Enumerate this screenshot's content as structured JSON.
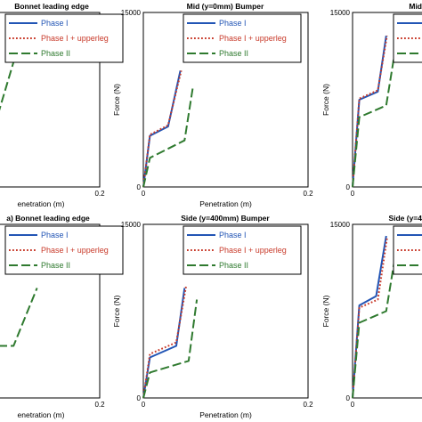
{
  "colors": {
    "phase1": "#2255b5",
    "phase1_upperleg": "#c83a2a",
    "phase2": "#2f7a2f",
    "axis": "#000000"
  },
  "chart_data": [
    {
      "type": "line",
      "title": "Bonnet leading edge",
      "xlabel": "enetration (m)",
      "ylabel": "",
      "xlim": [
        0,
        0.2
      ],
      "ylim": [
        0,
        15000
      ],
      "x_ticks": [
        "0.2"
      ],
      "y_ticks": [],
      "legend": "top-right",
      "series": [
        {
          "name": "Phase I",
          "color_key": "phase1",
          "style": "solid",
          "points": []
        },
        {
          "name": "Phase I + upperleg",
          "color_key": "phase1_upperleg",
          "style": "dotted",
          "points": [
            [
              0.0,
              7500
            ],
            [
              0.085,
              7500
            ],
            [
              0.095,
              13500
            ]
          ]
        },
        {
          "name": "Phase II",
          "color_key": "phase2",
          "style": "dashed",
          "points": [
            [
              0.0,
              6000
            ],
            [
              0.135,
              6200
            ],
            [
              0.15,
              13000
            ]
          ]
        }
      ]
    },
    {
      "type": "line",
      "title": "Mid (y=0mm) Bumper",
      "xlabel": "Penetration (m)",
      "ylabel": "Force (N)",
      "xlim": [
        0,
        0.2
      ],
      "ylim": [
        0,
        15000
      ],
      "x_ticks": [
        "0",
        "0.2"
      ],
      "y_ticks": [
        "0",
        "15000"
      ],
      "legend": "top-right",
      "series": [
        {
          "name": "Phase I",
          "color_key": "phase1",
          "style": "solid",
          "points": [
            [
              0.0,
              0
            ],
            [
              0.008,
              4400
            ],
            [
              0.03,
              5200
            ],
            [
              0.045,
              10000
            ]
          ]
        },
        {
          "name": "Phase I + upperleg",
          "color_key": "phase1_upperleg",
          "style": "dotted",
          "points": [
            [
              0.0,
              0
            ],
            [
              0.008,
              4500
            ],
            [
              0.03,
              5300
            ],
            [
              0.046,
              10000
            ]
          ]
        },
        {
          "name": "Phase II",
          "color_key": "phase2",
          "style": "dashed",
          "points": [
            [
              0.0,
              0
            ],
            [
              0.008,
              2500
            ],
            [
              0.05,
              4000
            ],
            [
              0.06,
              8500
            ]
          ]
        }
      ]
    },
    {
      "type": "line",
      "title": "Mid",
      "xlabel": "",
      "ylabel": "Force (N)",
      "xlim": [
        0,
        0.2
      ],
      "ylim": [
        0,
        15000
      ],
      "x_ticks": [
        "0"
      ],
      "y_ticks": [
        "0",
        "15000"
      ],
      "legend": "top-right",
      "series": [
        {
          "name": "Phase I",
          "color_key": "phase1",
          "style": "solid",
          "points": [
            [
              0.0,
              0
            ],
            [
              0.008,
              7500
            ],
            [
              0.03,
              8200
            ],
            [
              0.04,
              13000
            ]
          ]
        },
        {
          "name": "Phase I + upperleg",
          "color_key": "phase1_upperleg",
          "style": "dotted",
          "points": [
            [
              0.0,
              0
            ],
            [
              0.008,
              7600
            ],
            [
              0.03,
              8300
            ],
            [
              0.041,
              13000
            ]
          ]
        },
        {
          "name": "Phase II",
          "color_key": "phase2",
          "style": "dashed",
          "points": [
            [
              0.0,
              0
            ],
            [
              0.008,
              6000
            ],
            [
              0.04,
              7000
            ],
            [
              0.05,
              11500
            ]
          ]
        }
      ]
    },
    {
      "type": "line",
      "title": "a) Bonnet leading edge",
      "xlabel": "enetration (m)",
      "ylabel": "",
      "xlim": [
        0,
        0.2
      ],
      "ylim": [
        0,
        15000
      ],
      "x_ticks": [
        "0.2"
      ],
      "y_ticks": [],
      "legend": "top-right",
      "series": [
        {
          "name": "Phase I",
          "color_key": "phase1",
          "style": "solid",
          "points": []
        },
        {
          "name": "Phase I + upperleg",
          "color_key": "phase1_upperleg",
          "style": "dotted",
          "points": [
            [
              0.0,
              5000
            ],
            [
              0.1,
              5200
            ],
            [
              0.11,
              10500
            ]
          ]
        },
        {
          "name": "Phase II",
          "color_key": "phase2",
          "style": "dashed",
          "points": [
            [
              0.0,
              4500
            ],
            [
              0.145,
              4500
            ],
            [
              0.16,
              9500
            ]
          ]
        }
      ]
    },
    {
      "type": "line",
      "title": "Side (y=400mm) Bumper",
      "xlabel": "Penetration (m)",
      "ylabel": "Force (N)",
      "xlim": [
        0,
        0.2
      ],
      "ylim": [
        0,
        15000
      ],
      "x_ticks": [
        "0",
        "0.2"
      ],
      "y_ticks": [
        "0",
        "15000"
      ],
      "legend": "top-right",
      "series": [
        {
          "name": "Phase I",
          "color_key": "phase1",
          "style": "solid",
          "points": [
            [
              0.0,
              0
            ],
            [
              0.008,
              3500
            ],
            [
              0.04,
              4500
            ],
            [
              0.05,
              9500
            ]
          ]
        },
        {
          "name": "Phase I + upperleg",
          "color_key": "phase1_upperleg",
          "style": "dotted",
          "points": [
            [
              0.0,
              0
            ],
            [
              0.008,
              3800
            ],
            [
              0.04,
              4800
            ],
            [
              0.052,
              9700
            ]
          ]
        },
        {
          "name": "Phase II",
          "color_key": "phase2",
          "style": "dashed",
          "points": [
            [
              0.0,
              0
            ],
            [
              0.008,
              2200
            ],
            [
              0.055,
              3200
            ],
            [
              0.065,
              8500
            ]
          ]
        }
      ]
    },
    {
      "type": "line",
      "title": "Side (y=4",
      "xlabel": "",
      "ylabel": "Force (N)",
      "xlim": [
        0,
        0.2
      ],
      "ylim": [
        0,
        15000
      ],
      "x_ticks": [
        "0"
      ],
      "y_ticks": [
        "0",
        "15000"
      ],
      "legend": "top-right",
      "series": [
        {
          "name": "Phase I",
          "color_key": "phase1",
          "style": "solid",
          "points": [
            [
              0.0,
              0
            ],
            [
              0.008,
              8000
            ],
            [
              0.028,
              8800
            ],
            [
              0.04,
              14000
            ]
          ]
        },
        {
          "name": "Phase I + upperleg",
          "color_key": "phase1_upperleg",
          "style": "dotted",
          "points": [
            [
              0.0,
              0
            ],
            [
              0.008,
              7800
            ],
            [
              0.03,
              8500
            ],
            [
              0.041,
              13800
            ]
          ]
        },
        {
          "name": "Phase II",
          "color_key": "phase2",
          "style": "dashed",
          "points": [
            [
              0.0,
              0
            ],
            [
              0.008,
              6500
            ],
            [
              0.04,
              7500
            ],
            [
              0.05,
              12000
            ]
          ]
        }
      ]
    }
  ]
}
